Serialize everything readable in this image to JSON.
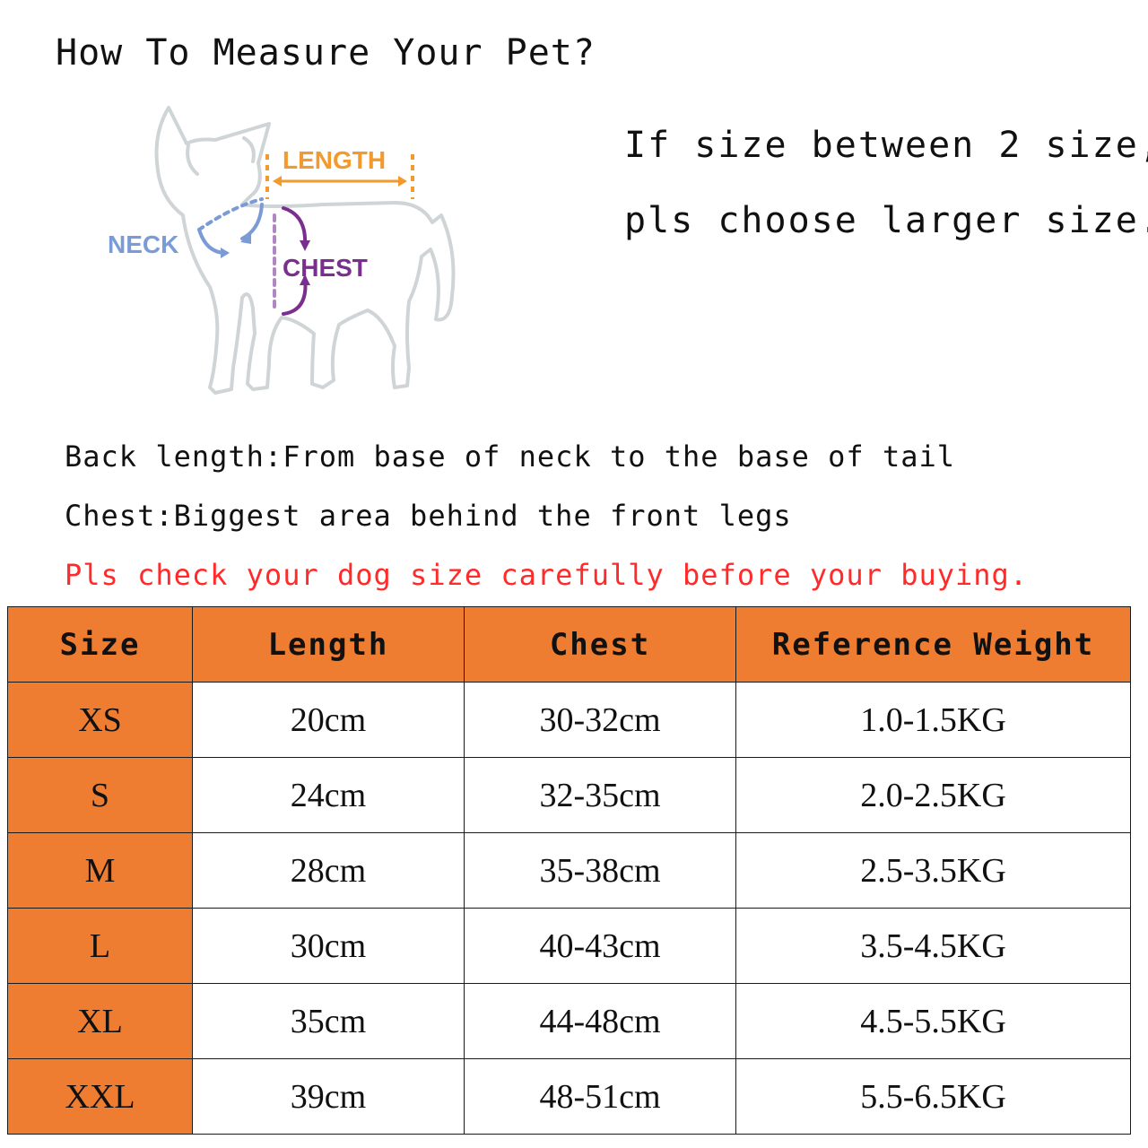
{
  "title": "How To Measure Your Pet?",
  "tip": {
    "line1": "If size between 2 size,",
    "line2": "pls choose larger size."
  },
  "diagram": {
    "length_label": "LENGTH",
    "neck_label": "NECK",
    "chest_label": "CHEST",
    "colors": {
      "length": "#f39a2e",
      "neck": "#7b9bd6",
      "chest": "#7a2f8e",
      "outline": "#cfd4d6"
    }
  },
  "instructions": {
    "back_length": "Back length:From base of neck to the base of tail",
    "chest": "Chest:Biggest area behind the front legs",
    "warning": "Pls check your dog size carefully before your buying."
  },
  "table": {
    "headers": [
      "Size",
      "Length",
      "Chest",
      "Reference Weight"
    ],
    "rows": [
      {
        "size": "XS",
        "length": "20cm",
        "chest": "30-32cm",
        "weight": "1.0-1.5KG"
      },
      {
        "size": "S",
        "length": "24cm",
        "chest": "32-35cm",
        "weight": "2.0-2.5KG"
      },
      {
        "size": "M",
        "length": "28cm",
        "chest": "35-38cm",
        "weight": "2.5-3.5KG"
      },
      {
        "size": "L",
        "length": "30cm",
        "chest": "40-43cm",
        "weight": "3.5-4.5KG"
      },
      {
        "size": "XL",
        "length": "35cm",
        "chest": "44-48cm",
        "weight": "4.5-5.5KG"
      },
      {
        "size": "XXL",
        "length": "39cm",
        "chest": "48-51cm",
        "weight": "5.5-6.5KG"
      }
    ],
    "header_color": "#ef7d31"
  }
}
